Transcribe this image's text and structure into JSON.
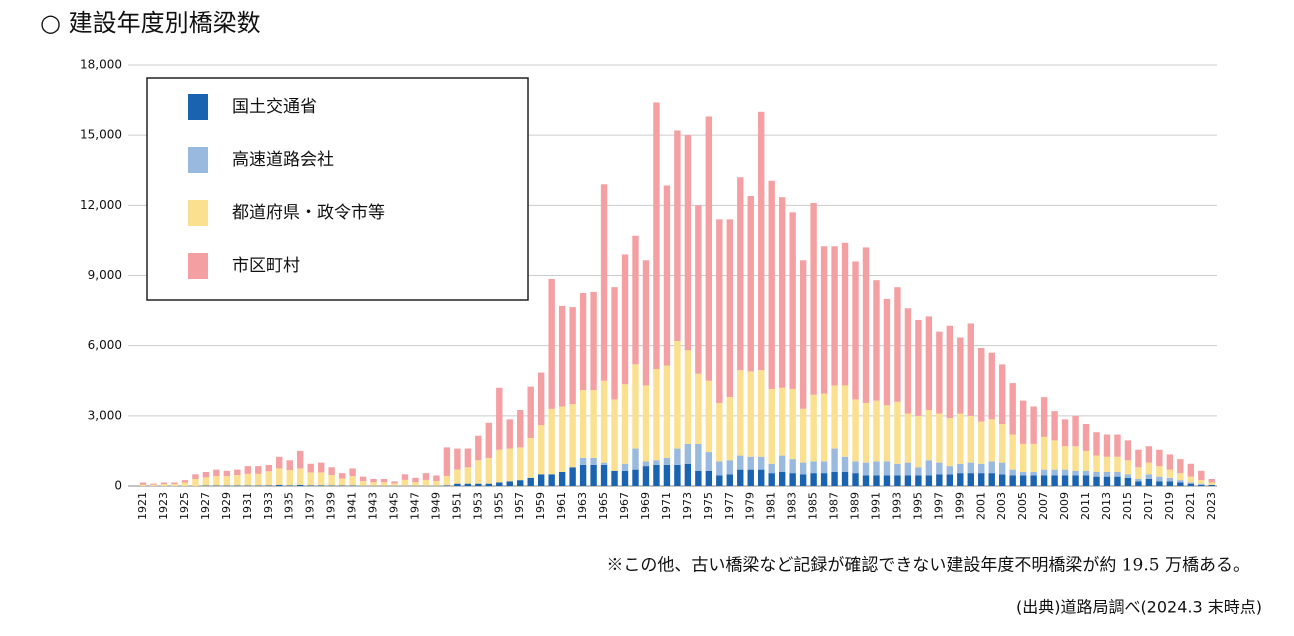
{
  "chart_data": {
    "type": "stacked_bar",
    "title": "○ 建設年度別橋梁数",
    "note": "※この他、古い橋梁など記録が確認できない建設年度不明橋梁が約 19.5 万橋ある。",
    "source": "(出典)道路局調べ(2024.3 末時点)",
    "categories": [
      "1921",
      null,
      "1923",
      null,
      "1925",
      null,
      "1927",
      null,
      "1929",
      null,
      "1931",
      null,
      "1933",
      null,
      "1935",
      null,
      "1937",
      null,
      "1939",
      null,
      "1941",
      null,
      "1943",
      null,
      "1945",
      null,
      "1947",
      null,
      "1949",
      null,
      "1951",
      null,
      "1953",
      null,
      "1955",
      null,
      "1957",
      null,
      "1959",
      null,
      "1961",
      null,
      "1963",
      null,
      "1965",
      null,
      "1967",
      null,
      "1969",
      null,
      "1971",
      null,
      "1973",
      null,
      "1975",
      null,
      "1977",
      null,
      "1979",
      null,
      "1981",
      null,
      "1983",
      null,
      "1985",
      null,
      "1987",
      null,
      "1989",
      null,
      "1991",
      null,
      "1993",
      null,
      "1995",
      null,
      "1997",
      null,
      "1999",
      null,
      "2001",
      null,
      "2003",
      null,
      "2005",
      null,
      "2007",
      null,
      "2009",
      null,
      "2011",
      null,
      "2013",
      null,
      "2015",
      null,
      "2017",
      null,
      "2019",
      null,
      "2021",
      null,
      "2023"
    ],
    "series": [
      {
        "name": "国土交通省",
        "color": "#1a63b0",
        "values": [
          0,
          0,
          0,
          0,
          0,
          0,
          20,
          20,
          20,
          20,
          20,
          20,
          30,
          50,
          30,
          50,
          30,
          30,
          20,
          20,
          20,
          10,
          10,
          10,
          10,
          10,
          10,
          10,
          10,
          30,
          100,
          100,
          100,
          100,
          150,
          200,
          250,
          350,
          500,
          500,
          600,
          800,
          900,
          900,
          900,
          650,
          650,
          700,
          850,
          900,
          900,
          900,
          950,
          650,
          650,
          450,
          500,
          700,
          700,
          700,
          550,
          600,
          550,
          500,
          550,
          550,
          600,
          600,
          550,
          450,
          450,
          450,
          450,
          450,
          450,
          450,
          500,
          500,
          550,
          550,
          550,
          550,
          500,
          450,
          450,
          450,
          450,
          450,
          450,
          450,
          450,
          400,
          400,
          400,
          350,
          200,
          300,
          200,
          200,
          150,
          100,
          50,
          50
        ]
      },
      {
        "name": "高速道路会社",
        "color": "#99b9df",
        "values": [
          0,
          0,
          0,
          0,
          0,
          0,
          0,
          0,
          0,
          0,
          0,
          0,
          0,
          0,
          0,
          0,
          0,
          0,
          0,
          0,
          0,
          0,
          0,
          0,
          0,
          0,
          0,
          0,
          0,
          0,
          0,
          0,
          0,
          0,
          0,
          0,
          0,
          0,
          0,
          0,
          0,
          0,
          300,
          300,
          100,
          0,
          300,
          900,
          200,
          200,
          300,
          700,
          850,
          1150,
          800,
          600,
          600,
          600,
          550,
          550,
          400,
          700,
          600,
          500,
          500,
          500,
          1000,
          650,
          500,
          550,
          600,
          600,
          500,
          550,
          350,
          650,
          500,
          350,
          400,
          450,
          400,
          500,
          500,
          250,
          150,
          150,
          250,
          250,
          250,
          200,
          200,
          200,
          200,
          200,
          150,
          100,
          200,
          200,
          150,
          100,
          50,
          50,
          0
        ]
      },
      {
        "name": "都道府県・政令市等",
        "color": "#fbe08f",
        "values": [
          50,
          50,
          80,
          80,
          150,
          300,
          350,
          400,
          400,
          450,
          500,
          500,
          600,
          700,
          650,
          700,
          550,
          550,
          450,
          300,
          400,
          200,
          150,
          150,
          100,
          250,
          150,
          250,
          200,
          400,
          600,
          700,
          1000,
          1100,
          1400,
          1400,
          1400,
          1700,
          2100,
          2800,
          2800,
          2700,
          2900,
          2900,
          3500,
          3050,
          3400,
          3600,
          3250,
          3900,
          3950,
          4600,
          4000,
          3000,
          3050,
          2500,
          2700,
          3650,
          3650,
          3700,
          3200,
          2900,
          3000,
          2300,
          2850,
          2900,
          2700,
          3050,
          2650,
          2550,
          2600,
          2400,
          2650,
          2100,
          2200,
          2150,
          2100,
          2050,
          2150,
          2000,
          1800,
          1800,
          1650,
          1500,
          1200,
          1200,
          1400,
          1250,
          1000,
          1050,
          850,
          700,
          650,
          650,
          600,
          500,
          500,
          450,
          350,
          300,
          250,
          150,
          100
        ]
      },
      {
        "name": "市区町村",
        "color": "#f4a0a3",
        "values": [
          100,
          50,
          70,
          70,
          100,
          200,
          230,
          280,
          230,
          230,
          330,
          330,
          270,
          500,
          420,
          750,
          370,
          420,
          330,
          230,
          330,
          190,
          140,
          140,
          90,
          240,
          190,
          290,
          240,
          1220,
          900,
          800,
          1050,
          1500,
          2650,
          1250,
          1600,
          2200,
          2250,
          5550,
          4300,
          4150,
          4150,
          4200,
          8400,
          4800,
          5550,
          5500,
          5350,
          11400,
          7700,
          9000,
          9200,
          7200,
          11300,
          7850,
          7600,
          8250,
          7500,
          11050,
          8900,
          8150,
          7550,
          6350,
          8200,
          6300,
          5950,
          6100,
          5900,
          6650,
          5150,
          4550,
          4900,
          4500,
          4100,
          4000,
          3500,
          3950,
          3250,
          3950,
          3150,
          2850,
          2550,
          2200,
          1850,
          1600,
          1700,
          1250,
          1150,
          1300,
          1150,
          1000,
          950,
          950,
          850,
          750,
          700,
          700,
          650,
          600,
          550,
          400,
          150
        ]
      }
    ],
    "ylim": [
      0,
      18000
    ],
    "yticks": [
      0,
      {
        "value": 3000,
        "label": "3,000"
      },
      {
        "value": 6000,
        "label": "6,000"
      },
      {
        "value": 9000,
        "label": "9,000"
      },
      {
        "value": 12000,
        "label": "12,000"
      },
      {
        "value": 15000,
        "label": "15,000"
      },
      {
        "value": 18000,
        "label": "18,000"
      }
    ],
    "grid": true,
    "legend": "upper-left"
  }
}
